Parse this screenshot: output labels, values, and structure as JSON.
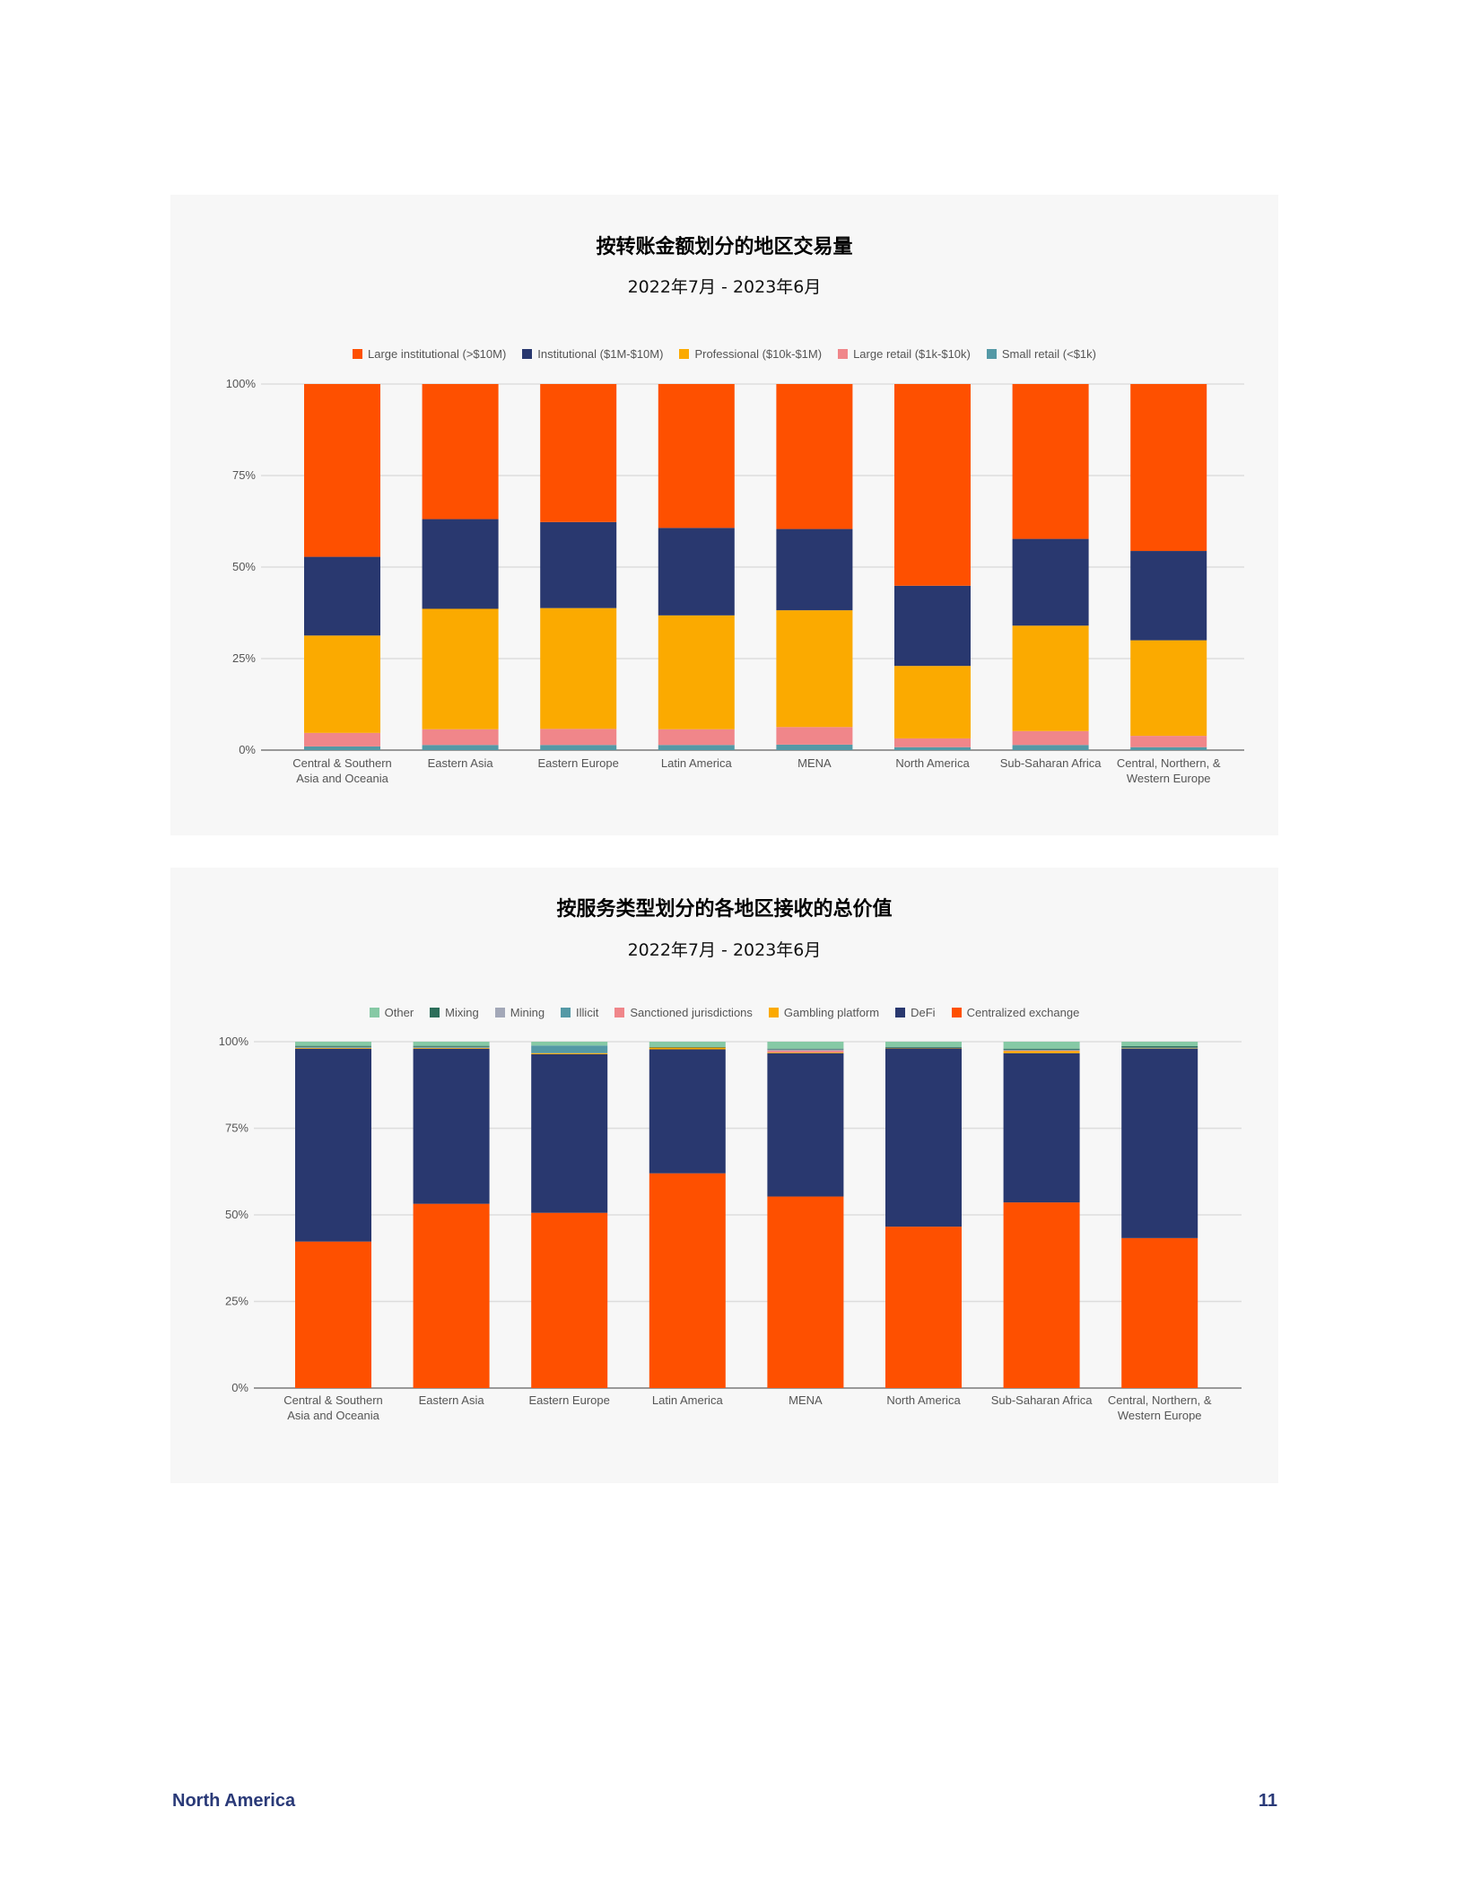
{
  "chart_data": [
    {
      "type": "bar",
      "stacked": true,
      "normalized": true,
      "title": "按转账金额划分的地区交易量",
      "subtitle": "2022年7月 - 2023年6月",
      "ylim": [
        0,
        100
      ],
      "yticks": [
        "0%",
        "25%",
        "50%",
        "75%",
        "100%"
      ],
      "grid": true,
      "legend_position": "top",
      "categories": [
        [
          "Central & Southern",
          "Asia and Oceania"
        ],
        [
          "Eastern Asia"
        ],
        [
          "Eastern Europe"
        ],
        [
          "Latin America"
        ],
        [
          "MENA"
        ],
        [
          "North America"
        ],
        [
          "Sub-Saharan Africa"
        ],
        [
          "Central, Northern, &",
          "Western Europe"
        ]
      ],
      "series": [
        {
          "name": "Small retail (<$1k)",
          "color": "#5499a6",
          "values": [
            1.0,
            1.4,
            1.4,
            1.4,
            1.5,
            0.8,
            1.4,
            0.8
          ]
        },
        {
          "name": "Large retail ($1k-$10k)",
          "color": "#f0868a",
          "values": [
            3.7,
            4.3,
            4.4,
            4.3,
            4.8,
            2.4,
            3.8,
            3.1
          ]
        },
        {
          "name": "Professional ($10k-$1M)",
          "color": "#fbaa00",
          "values": [
            26.6,
            32.9,
            33.0,
            31.1,
            31.9,
            19.8,
            28.8,
            26.1
          ]
        },
        {
          "name": "Institutional ($1M-$10M)",
          "color": "#29386f",
          "values": [
            21.5,
            24.5,
            23.5,
            23.9,
            22.2,
            21.9,
            23.7,
            24.4
          ]
        },
        {
          "name": "Large institutional (>$10M)",
          "color": "#fe5000",
          "values": [
            47.2,
            36.9,
            37.7,
            39.3,
            39.6,
            55.1,
            42.3,
            45.6
          ]
        }
      ],
      "legend_order": [
        4,
        3,
        2,
        1,
        0
      ]
    },
    {
      "type": "bar",
      "stacked": true,
      "normalized": true,
      "title": "按服务类型划分的各地区接收的总价值",
      "subtitle": "2022年7月 - 2023年6月",
      "ylim": [
        0,
        100
      ],
      "yticks": [
        "0%",
        "25%",
        "50%",
        "75%",
        "100%"
      ],
      "grid": true,
      "legend_position": "top",
      "categories": [
        [
          "Central & Southern",
          "Asia and Oceania"
        ],
        [
          "Eastern Asia"
        ],
        [
          "Eastern Europe"
        ],
        [
          "Latin America"
        ],
        [
          "MENA"
        ],
        [
          "North America"
        ],
        [
          "Sub-Saharan Africa"
        ],
        [
          "Central, Northern, &",
          "Western Europe"
        ]
      ],
      "series": [
        {
          "name": "Centralized exchange",
          "color": "#fe5000",
          "values": [
            42.3,
            53.2,
            50.6,
            62.0,
            55.3,
            46.6,
            53.6,
            43.3
          ]
        },
        {
          "name": "DeFi",
          "color": "#29386f",
          "values": [
            55.7,
            44.8,
            45.8,
            35.8,
            41.4,
            51.5,
            43.1,
            54.7
          ]
        },
        {
          "name": "Gambling platform",
          "color": "#fbaa00",
          "values": [
            0.2,
            0.2,
            0.3,
            0.5,
            0.2,
            0.1,
            0.6,
            0.1
          ]
        },
        {
          "name": "Sanctioned jurisdictions",
          "color": "#f0868a",
          "values": [
            0.0,
            0.0,
            0.0,
            0.0,
            0.5,
            0.0,
            0.2,
            0.0
          ]
        },
        {
          "name": "Illicit",
          "color": "#5499a6",
          "values": [
            0.2,
            0.2,
            2.2,
            0.0,
            0.0,
            0.1,
            0.2,
            0.1
          ]
        },
        {
          "name": "Mining",
          "color": "#a3a8b8",
          "values": [
            0.1,
            0.1,
            0.0,
            0.0,
            0.4,
            0.0,
            0.0,
            0.1
          ]
        },
        {
          "name": "Mixing",
          "color": "#2c6e5a",
          "values": [
            0.3,
            0.3,
            0.0,
            0.2,
            0.2,
            0.2,
            0.3,
            0.4
          ]
        },
        {
          "name": "Other",
          "color": "#86c9a5",
          "values": [
            1.2,
            1.2,
            1.1,
            1.5,
            2.0,
            1.5,
            2.0,
            1.3
          ]
        }
      ],
      "legend_order": [
        7,
        6,
        5,
        4,
        3,
        2,
        1,
        0
      ]
    }
  ],
  "footer": {
    "section": "North America",
    "page": "11"
  }
}
